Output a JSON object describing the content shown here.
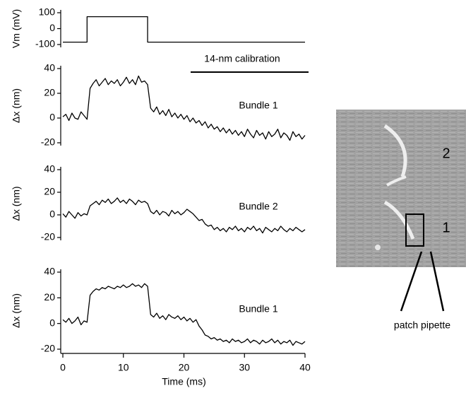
{
  "chart_data": [
    {
      "type": "line",
      "ylabel": "Vm (mV)",
      "annotation": "14-nm calibration",
      "x": [
        0,
        4,
        4,
        14,
        14,
        40
      ],
      "xlim": [
        0,
        40
      ],
      "series": [
        {
          "color": "#000000",
          "values": [
            -85,
            -85,
            75,
            75,
            -85,
            -85
          ]
        }
      ],
      "ylim": [
        -100,
        100
      ],
      "yticks": [
        -100,
        0,
        100
      ]
    },
    {
      "type": "line",
      "ylabel": "Δx (nm)",
      "x": [
        0,
        0.5,
        1,
        1.5,
        2,
        2.5,
        3,
        3.5,
        4,
        4.5,
        5,
        5.5,
        6,
        6.5,
        7,
        7.5,
        8,
        8.5,
        9,
        9.5,
        10,
        10.5,
        11,
        11.5,
        12,
        12.5,
        13,
        13.5,
        14,
        14.5,
        15,
        15.5,
        16,
        16.5,
        17,
        17.5,
        18,
        18.5,
        19,
        19.5,
        20,
        20.5,
        21,
        21.5,
        22,
        22.5,
        23,
        23.5,
        24,
        24.5,
        25,
        25.5,
        26,
        26.5,
        27,
        27.5,
        28,
        28.5,
        29,
        29.5,
        30,
        30.5,
        31,
        31.5,
        32,
        32.5,
        33,
        33.5,
        34,
        34.5,
        35,
        35.5,
        36,
        36.5,
        37,
        37.5,
        38,
        38.5,
        39,
        39.5,
        40
      ],
      "xlim": [
        0,
        40
      ],
      "series": [
        {
          "name": "Bundle 1",
          "color": "#000000",
          "values": [
            1,
            3,
            -2,
            4,
            0,
            -1,
            5,
            2,
            -1,
            24,
            28,
            31,
            26,
            29,
            32,
            27,
            30,
            28,
            31,
            26,
            29,
            33,
            28,
            31,
            27,
            34,
            29,
            30,
            27,
            8,
            5,
            9,
            3,
            6,
            2,
            7,
            1,
            4,
            0,
            3,
            -1,
            2,
            -3,
            0,
            -4,
            -2,
            -6,
            -3,
            -8,
            -5,
            -9,
            -7,
            -11,
            -8,
            -12,
            -9,
            -13,
            -10,
            -14,
            -11,
            -15,
            -9,
            -13,
            -16,
            -10,
            -14,
            -12,
            -17,
            -11,
            -15,
            -13,
            -9,
            -16,
            -12,
            -14,
            -18,
            -11,
            -15,
            -13,
            -17,
            -14
          ]
        }
      ],
      "ylim": [
        -20,
        40
      ],
      "yticks": [
        -20,
        0,
        20,
        40
      ]
    },
    {
      "type": "line",
      "ylabel": "Δx (nm)",
      "x": [
        0,
        0.5,
        1,
        1.5,
        2,
        2.5,
        3,
        3.5,
        4,
        4.5,
        5,
        5.5,
        6,
        6.5,
        7,
        7.5,
        8,
        8.5,
        9,
        9.5,
        10,
        10.5,
        11,
        11.5,
        12,
        12.5,
        13,
        13.5,
        14,
        14.5,
        15,
        15.5,
        16,
        16.5,
        17,
        17.5,
        18,
        18.5,
        19,
        19.5,
        20,
        20.5,
        21,
        21.5,
        22,
        22.5,
        23,
        23.5,
        24,
        24.5,
        25,
        25.5,
        26,
        26.5,
        27,
        27.5,
        28,
        28.5,
        29,
        29.5,
        30,
        30.5,
        31,
        31.5,
        32,
        32.5,
        33,
        33.5,
        34,
        34.5,
        35,
        35.5,
        36,
        36.5,
        37,
        37.5,
        38,
        38.5,
        39,
        39.5,
        40
      ],
      "xlim": [
        0,
        40
      ],
      "series": [
        {
          "name": "Bundle 2",
          "color": "#000000",
          "values": [
            1,
            -2,
            3,
            0,
            -3,
            2,
            -1,
            1,
            0,
            8,
            10,
            12,
            9,
            13,
            11,
            14,
            10,
            12,
            15,
            11,
            13,
            10,
            14,
            12,
            9,
            13,
            11,
            12,
            10,
            3,
            1,
            4,
            0,
            3,
            2,
            -1,
            4,
            1,
            3,
            0,
            2,
            5,
            3,
            1,
            -2,
            -5,
            -4,
            -8,
            -10,
            -9,
            -13,
            -11,
            -14,
            -12,
            -15,
            -11,
            -13,
            -10,
            -14,
            -12,
            -15,
            -11,
            -13,
            -10,
            -14,
            -12,
            -16,
            -11,
            -13,
            -15,
            -12,
            -14,
            -10,
            -13,
            -15,
            -12,
            -14,
            -11,
            -13,
            -15,
            -13
          ]
        }
      ],
      "ylim": [
        -20,
        40
      ],
      "yticks": [
        -20,
        0,
        20,
        40
      ]
    },
    {
      "type": "line",
      "ylabel": "Δx (nm)",
      "xlabel": "Time (ms)",
      "x": [
        0,
        0.5,
        1,
        1.5,
        2,
        2.5,
        3,
        3.5,
        4,
        4.5,
        5,
        5.5,
        6,
        6.5,
        7,
        7.5,
        8,
        8.5,
        9,
        9.5,
        10,
        10.5,
        11,
        11.5,
        12,
        12.5,
        13,
        13.5,
        14,
        14.5,
        15,
        15.5,
        16,
        16.5,
        17,
        17.5,
        18,
        18.5,
        19,
        19.5,
        20,
        20.5,
        21,
        21.5,
        22,
        22.5,
        23,
        23.5,
        24,
        24.5,
        25,
        25.5,
        26,
        26.5,
        27,
        27.5,
        28,
        28.5,
        29,
        29.5,
        30,
        30.5,
        31,
        31.5,
        32,
        32.5,
        33,
        33.5,
        34,
        34.5,
        35,
        35.5,
        36,
        36.5,
        37,
        37.5,
        38,
        38.5,
        39,
        39.5,
        40
      ],
      "xlim": [
        0,
        40
      ],
      "xticks": [
        0,
        10,
        20,
        30,
        40
      ],
      "series": [
        {
          "name": "Bundle 1",
          "color": "#000000",
          "values": [
            3,
            1,
            4,
            0,
            2,
            5,
            -1,
            2,
            1,
            22,
            25,
            27,
            26,
            28,
            27,
            29,
            28,
            27,
            29,
            28,
            30,
            28,
            29,
            31,
            29,
            30,
            28,
            31,
            29,
            7,
            5,
            8,
            4,
            6,
            3,
            7,
            5,
            4,
            6,
            3,
            5,
            2,
            4,
            1,
            3,
            -2,
            -5,
            -9,
            -10,
            -12,
            -11,
            -13,
            -12,
            -14,
            -13,
            -15,
            -12,
            -14,
            -13,
            -15,
            -14,
            -12,
            -15,
            -13,
            -14,
            -16,
            -13,
            -15,
            -14,
            -12,
            -15,
            -13,
            -16,
            -14,
            -15,
            -13,
            -17,
            -14,
            -15,
            -16,
            -14
          ]
        }
      ],
      "ylim": [
        -20,
        40
      ],
      "yticks": [
        -20,
        0,
        20,
        40
      ]
    }
  ],
  "image": {
    "labels": [
      "2",
      "1"
    ],
    "pipette_label": "patch pipette"
  }
}
